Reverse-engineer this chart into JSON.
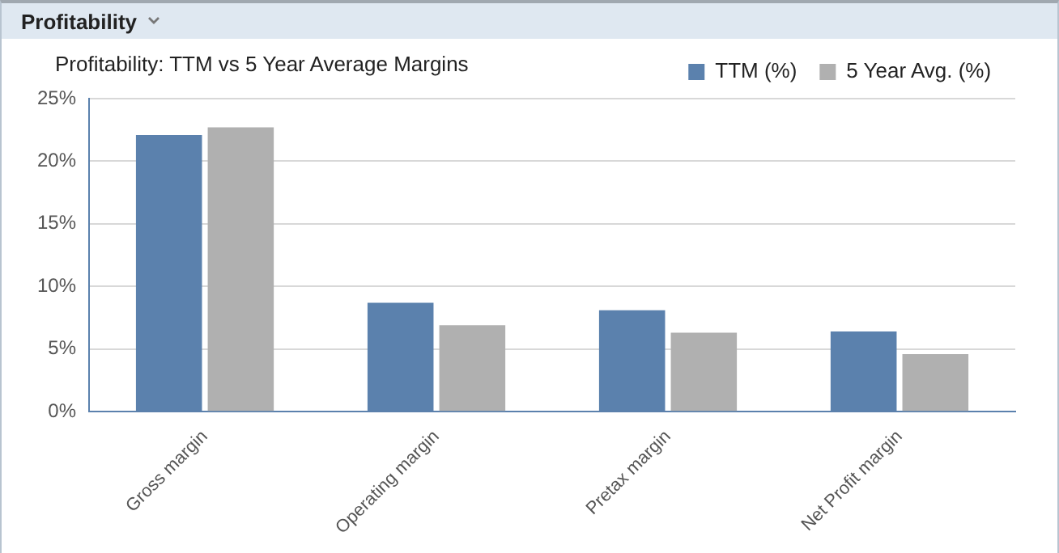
{
  "chart_data": {
    "type": "bar",
    "title": "Profitability",
    "subtitle": "Profitability: TTM vs 5 Year Average Margins",
    "categories": [
      "Gross margin",
      "Operating margin",
      "Pretax margin",
      "Net Profit margin"
    ],
    "series": [
      {
        "name": "TTM (%)",
        "color": "#5b81ad",
        "values": [
          22.1,
          8.7,
          8.1,
          6.4
        ]
      },
      {
        "name": "5 Year Avg. (%)",
        "color": "#b0b0b0",
        "values": [
          22.7,
          6.9,
          6.3,
          4.6
        ]
      }
    ],
    "ylim": [
      0,
      25
    ],
    "yticks": [
      {
        "value": 0,
        "label": "0%"
      },
      {
        "value": 5,
        "label": "5%"
      },
      {
        "value": 10,
        "label": "10%"
      },
      {
        "value": 15,
        "label": "15%"
      },
      {
        "value": 20,
        "label": "20%"
      },
      {
        "value": 25,
        "label": "25%"
      }
    ],
    "grid": "y",
    "legend": "top right"
  }
}
